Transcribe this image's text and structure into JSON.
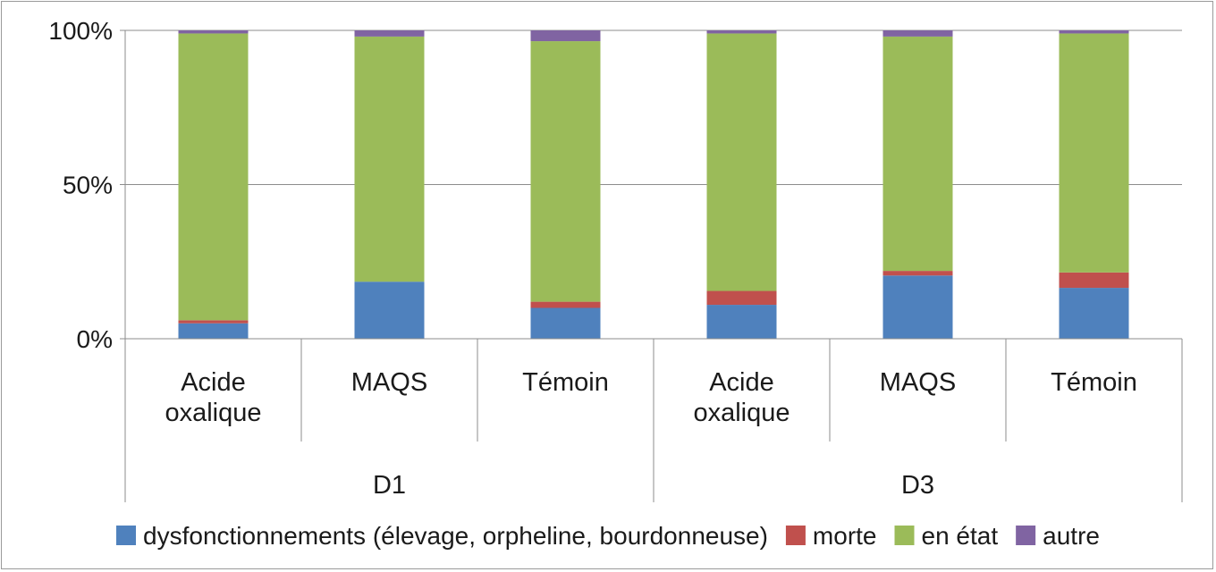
{
  "chart_data": {
    "type": "bar",
    "stacked": true,
    "percent": true,
    "groups": [
      {
        "label": "D1",
        "categories": [
          "Acide oxalique",
          "MAQS",
          "Témoin"
        ]
      },
      {
        "label": "D3",
        "categories": [
          "Acide oxalique",
          "MAQS",
          "Témoin"
        ]
      }
    ],
    "categories": [
      [
        "Acide",
        "oxalique"
      ],
      [
        "MAQS"
      ],
      [
        "Témoin"
      ],
      [
        "Acide",
        "oxalique"
      ],
      [
        "MAQS"
      ],
      [
        "Témoin"
      ]
    ],
    "series": [
      {
        "name": "dysfonctionnements (élevage, orpheline, bourdonneuse)",
        "color": "#4f81bd",
        "values": [
          5,
          18.5,
          10,
          11,
          20.5,
          16.5
        ]
      },
      {
        "name": "morte",
        "color": "#c0504d",
        "values": [
          1,
          0,
          2,
          4.5,
          1.5,
          5
        ]
      },
      {
        "name": "en état",
        "color": "#9bbb59",
        "values": [
          93,
          79.5,
          84.5,
          83.5,
          76,
          77.5
        ]
      },
      {
        "name": "autre",
        "color": "#8064a2",
        "values": [
          1,
          2,
          3.5,
          1,
          2,
          1
        ]
      }
    ],
    "yticks": [
      "0%",
      "50%",
      "100%"
    ],
    "ylim": [
      0,
      100
    ],
    "grid": true,
    "legend": "bottom"
  }
}
